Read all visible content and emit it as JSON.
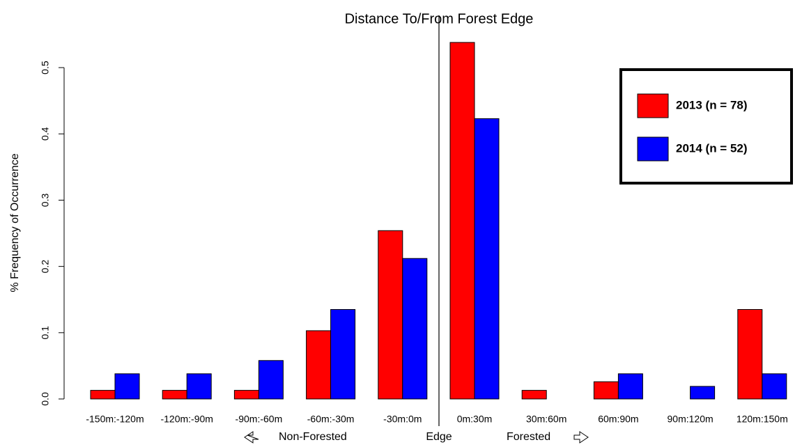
{
  "chart_data": {
    "type": "bar",
    "title": "Distance To/From Forest Edge",
    "y_label": "% Frequency of Occurrence",
    "categories": [
      "-150m:-120m",
      "-120m:-90m",
      "-90m:-60m",
      "-60m:-30m",
      "-30m:0m",
      "0m:30m",
      "30m:60m",
      "60m:90m",
      "90m:120m",
      "120m:150m"
    ],
    "series": [
      {
        "name": "2013 (n = 78)",
        "color": "#ff0000",
        "values": [
          0.013,
          0.013,
          0.013,
          0.103,
          0.254,
          0.538,
          0.013,
          0.026,
          0,
          0.135
        ]
      },
      {
        "name": "2014 (n = 52)",
        "color": "#0000ff",
        "values": [
          0.038,
          0.038,
          0.058,
          0.135,
          0.212,
          0.423,
          0,
          0.038,
          0.019,
          0.038
        ]
      }
    ],
    "ylim": [
      0,
      0.56
    ],
    "yticks": [
      {
        "value": 0,
        "label": "0.0"
      },
      0.1,
      0.2,
      0.3,
      0.4,
      0.5
    ],
    "annotations": [
      "Non-Forested",
      "Edge",
      "Forested"
    ],
    "legend": "top-right"
  }
}
